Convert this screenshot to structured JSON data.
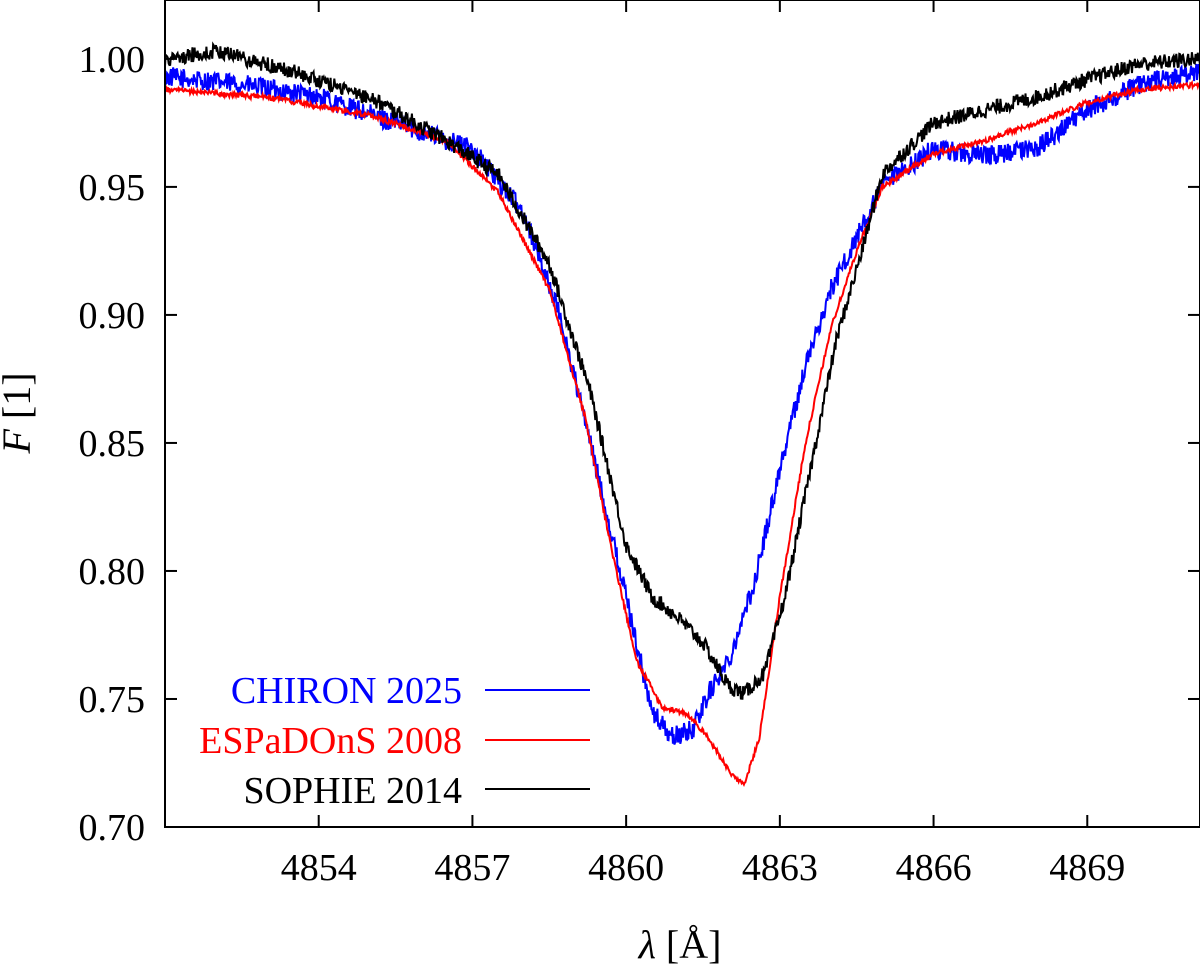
{
  "chart_data": {
    "type": "line",
    "title": "",
    "xlabel": {
      "symbol": "λ",
      "unit": " [Å]"
    },
    "ylabel": {
      "symbol": "F",
      "unit": " [1]"
    },
    "xlim": [
      4851.0,
      4871.2
    ],
    "ylim": [
      0.7,
      1.023
    ],
    "xticks": [
      {
        "value": 4854,
        "label": "4854"
      },
      {
        "value": 4857,
        "label": "4857"
      },
      {
        "value": 4860,
        "label": "4860"
      },
      {
        "value": 4863,
        "label": "4863"
      },
      {
        "value": 4866,
        "label": "4866"
      },
      {
        "value": 4869,
        "label": "4869"
      }
    ],
    "yticks": [
      {
        "value": 0.7,
        "label": "0.70"
      },
      {
        "value": 0.75,
        "label": "0.75"
      },
      {
        "value": 0.8,
        "label": "0.80"
      },
      {
        "value": 0.85,
        "label": "0.85"
      },
      {
        "value": 0.9,
        "label": "0.90"
      },
      {
        "value": 0.95,
        "label": "0.95"
      },
      {
        "value": 1.0,
        "label": "1.00"
      }
    ],
    "legend_position": "bottom-left",
    "series": [
      {
        "name": "CHIRON 2025",
        "color": "#0000ff",
        "noise": 0.004,
        "x": [
          4851.0,
          4852.5,
          4854,
          4855.5,
          4857,
          4858,
          4858.7,
          4859.3,
          4860,
          4860.5,
          4860.9,
          4861.3,
          4861.6,
          4862.0,
          4862.5,
          4863.0,
          4863.5,
          4864.0,
          4864.5,
          4865,
          4866,
          4867,
          4868,
          4869,
          4870,
          4871.2
        ],
        "y": [
          0.993,
          0.99,
          0.985,
          0.975,
          0.965,
          0.94,
          0.9,
          0.85,
          0.79,
          0.745,
          0.735,
          0.738,
          0.752,
          0.765,
          0.795,
          0.84,
          0.88,
          0.91,
          0.93,
          0.95,
          0.965,
          0.962,
          0.965,
          0.98,
          0.99,
          0.995
        ]
      },
      {
        "name": "ESPaDOnS 2008",
        "color": "#ff0000",
        "noise": 0.001,
        "x": [
          4851.0,
          4853,
          4855,
          4856.5,
          4857.5,
          4858.5,
          4859.2,
          4859.7,
          4860.2,
          4860.7,
          4861.2,
          4861.6,
          4862.0,
          4862.3,
          4862.6,
          4863.0,
          4863.5,
          4864.0,
          4864.5,
          4865,
          4866,
          4867,
          4868,
          4869,
          4870,
          4871.2
        ],
        "y": [
          0.988,
          0.985,
          0.978,
          0.968,
          0.948,
          0.91,
          0.86,
          0.81,
          0.765,
          0.747,
          0.744,
          0.735,
          0.722,
          0.716,
          0.735,
          0.79,
          0.85,
          0.895,
          0.925,
          0.95,
          0.963,
          0.968,
          0.975,
          0.983,
          0.988,
          0.99
        ]
      },
      {
        "name": "SOPHIE 2014",
        "color": "#000000",
        "noise": 0.003,
        "x": [
          4851.0,
          4852,
          4853.5,
          4855,
          4856.5,
          4857.5,
          4858.5,
          4859.3,
          4860.0,
          4860.5,
          4861.0,
          4861.5,
          4862.0,
          4862.3,
          4862.7,
          4863.1,
          4863.6,
          4864.1,
          4864.6,
          4865,
          4866,
          4867,
          4868,
          4869,
          4870,
          4871.2
        ],
        "y": [
          1.0,
          1.003,
          0.995,
          0.985,
          0.968,
          0.955,
          0.92,
          0.87,
          0.81,
          0.79,
          0.782,
          0.772,
          0.755,
          0.752,
          0.76,
          0.79,
          0.84,
          0.89,
          0.925,
          0.955,
          0.975,
          0.98,
          0.985,
          0.992,
          0.998,
          1.0
        ]
      }
    ]
  }
}
